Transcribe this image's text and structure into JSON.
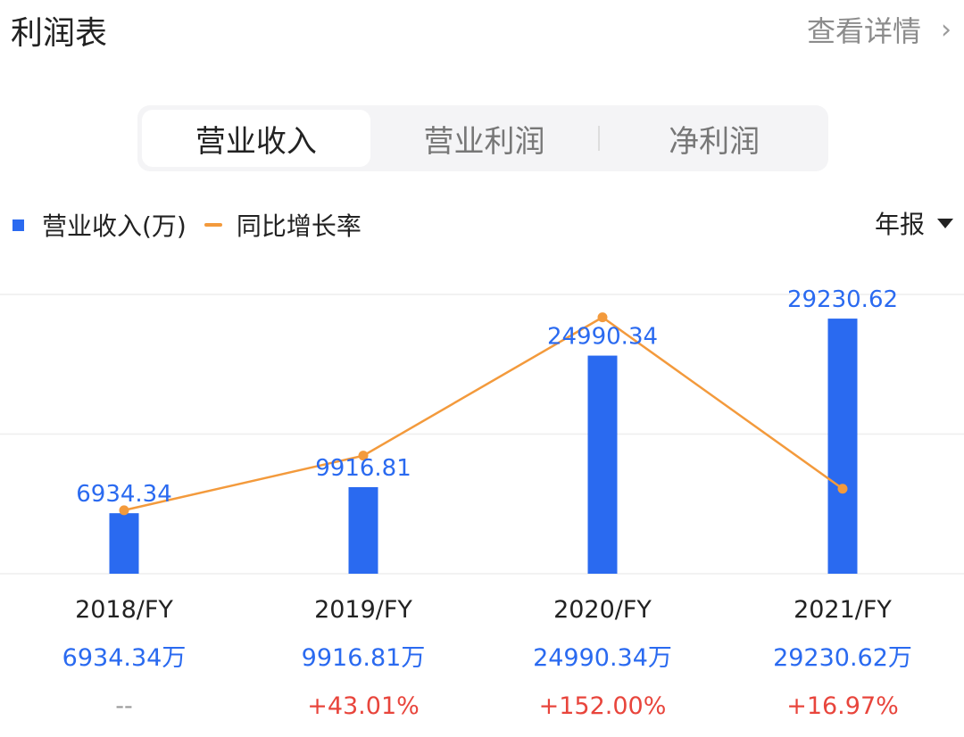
{
  "header": {
    "title": "利润表",
    "detail_label": "查看详情",
    "detail_icon": "chevron-right-icon"
  },
  "tabs": [
    {
      "label": "营业收入",
      "active": true
    },
    {
      "label": "营业利润",
      "active": false
    },
    {
      "label": "净利润",
      "active": false
    }
  ],
  "legend": {
    "bar_label": "营业收入(万)",
    "line_label": "同比增长率"
  },
  "period": {
    "label": "年报",
    "icon": "caret-down-icon"
  },
  "colors": {
    "bar": "#2a6af0",
    "line": "#f39a3c",
    "positive": "#e8453c",
    "muted": "#999999",
    "grid": "#eeeeee"
  },
  "chart_data": {
    "type": "bar",
    "categories": [
      "2018/FY",
      "2019/FY",
      "2020/FY",
      "2021/FY"
    ],
    "series": [
      {
        "name": "营业收入(万)",
        "type": "bar",
        "values": [
          6934.34,
          9916.81,
          24990.34,
          29230.62
        ],
        "labels": [
          "6934.34",
          "9916.81",
          "24990.34",
          "29230.62"
        ]
      },
      {
        "name": "同比增长率",
        "type": "line",
        "values": [
          null,
          43.01,
          152.0,
          16.97
        ]
      }
    ],
    "ylim": [
      0,
      32000
    ],
    "line_ylim": [
      -50,
      170
    ],
    "grid": true,
    "legend_position": "top-left",
    "value_row": [
      "6934.34万",
      "9916.81万",
      "24990.34万",
      "29230.62万"
    ],
    "growth_row": [
      "--",
      "+43.01%",
      "+152.00%",
      "+16.97%"
    ]
  }
}
